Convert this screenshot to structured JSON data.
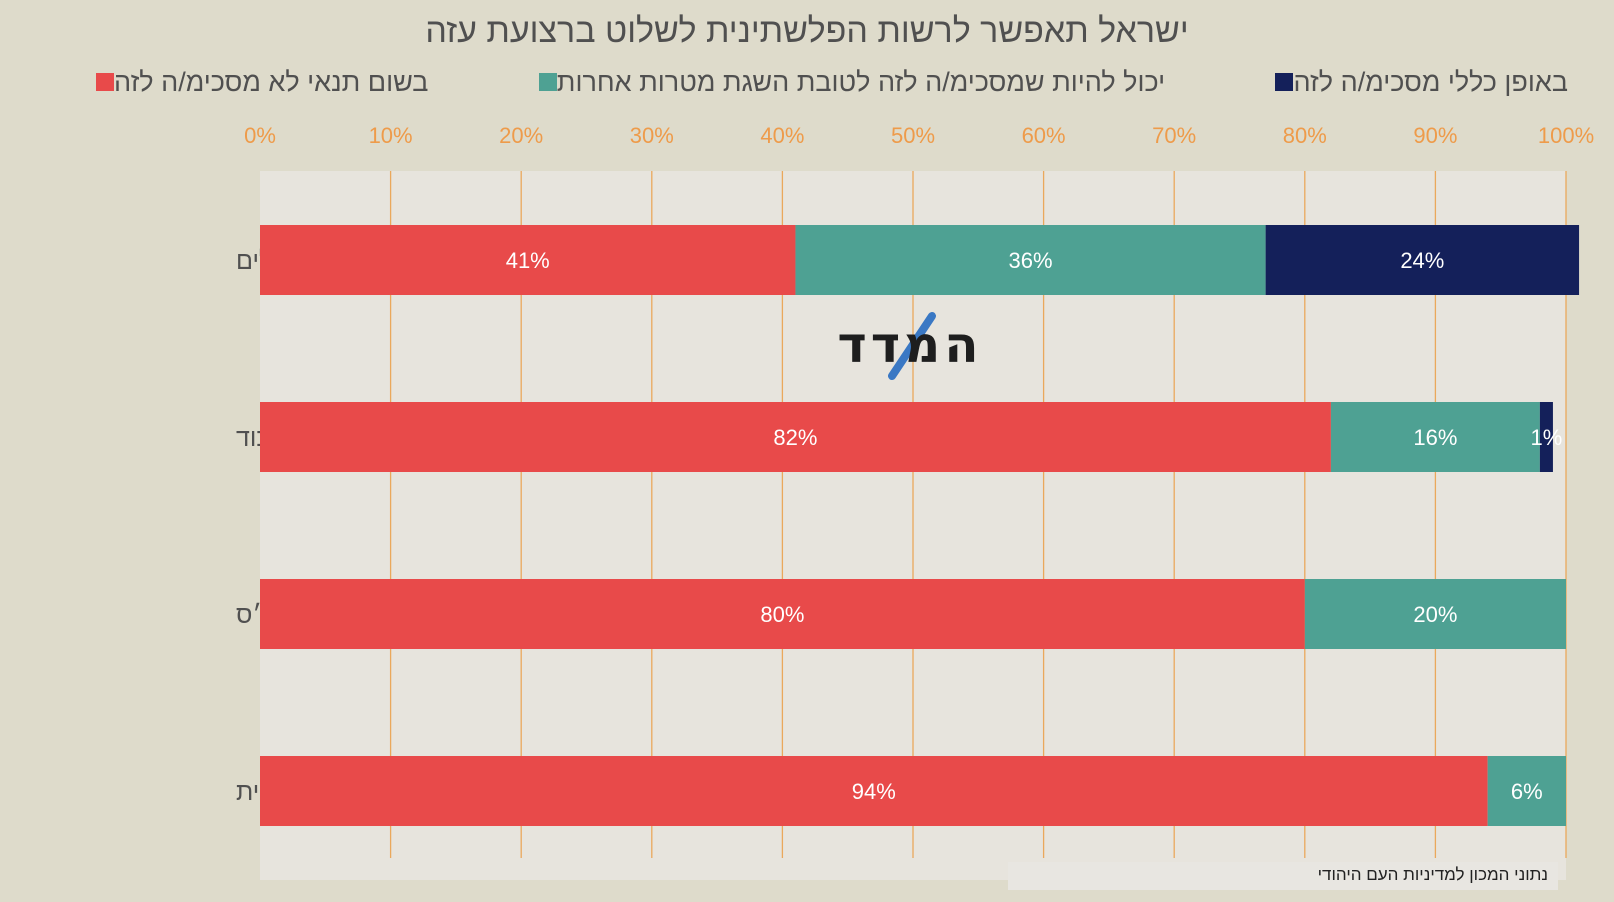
{
  "chart_data": {
    "type": "bar",
    "orientation": "horizontal-stacked-100",
    "title": "ישראל תאפשר לרשות הפלשתינית לשלוט ברצועת עזה",
    "categories": [
      "כלל הישראלים",
      "תומכי הליכוד",
      "תומכי ש״ס",
      "תומכי הציונות הדתית"
    ],
    "series": [
      {
        "name": "בשום תנאי לא מסכימ/ה לזה",
        "color": "#e84a4a",
        "values": [
          41,
          82,
          80,
          94
        ],
        "labels": [
          "41%",
          "82%",
          "80%",
          "94%"
        ]
      },
      {
        "name": "יכול להיות שמסכימ/ה לזה לטובת השגת מטרות אחרות",
        "color": "#4ea193",
        "values": [
          36,
          16,
          20,
          6
        ],
        "labels": [
          "36%",
          "16%",
          "20%",
          "6%"
        ]
      },
      {
        "name": "באופן כללי מסכימ/ה לזה",
        "color": "#14205a",
        "values": [
          24,
          1,
          0,
          0
        ],
        "labels": [
          "24%",
          "1%",
          "",
          ""
        ]
      }
    ],
    "xlim": [
      0,
      100
    ],
    "x_ticks": [
      "0%",
      "10%",
      "20%",
      "30%",
      "40%",
      "50%",
      "60%",
      "70%",
      "80%",
      "90%",
      "100%"
    ],
    "grid": "vertical",
    "legend_position": "top"
  },
  "logo_text": "המדד",
  "source": "נתוני המכון למדיניות העם היהודי"
}
